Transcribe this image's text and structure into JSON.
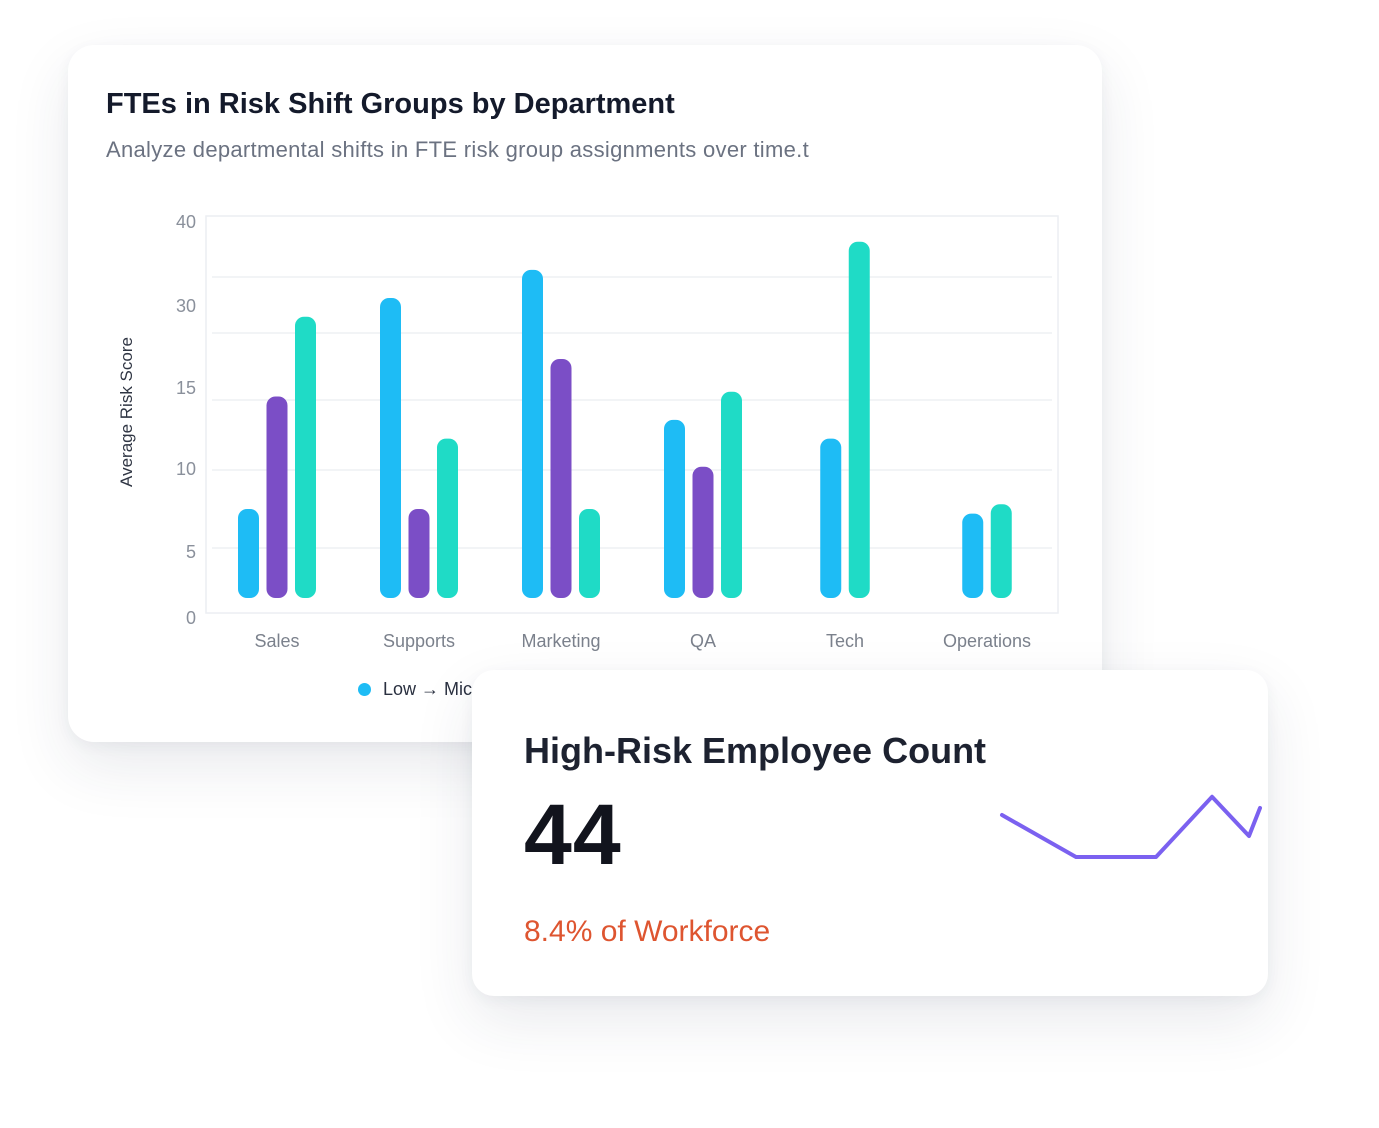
{
  "chart_card": {
    "title": "FTEs in Risk Shift Groups by Department",
    "subtitle": "Analyze departmental shifts in FTE risk group assignments over time.t"
  },
  "chart_data": {
    "type": "bar",
    "title": "FTEs in Risk Shift Groups by Department",
    "subtitle": "Analyze departmental shifts in FTE risk group assignments over time.t",
    "ylabel": "Average Risk Score",
    "xlabel": "",
    "y_ticks": [
      "0",
      "5",
      "10",
      "15",
      "30",
      "40"
    ],
    "ylim": [
      0,
      40
    ],
    "grid": true,
    "categories": [
      "Sales",
      "Supports",
      "Marketing",
      "QA",
      "Tech",
      "Operations"
    ],
    "series": [
      {
        "name": "Low → Mic",
        "color": "#1ebcf5",
        "values": [
          9.5,
          32,
          35,
          19,
          17,
          9
        ]
      },
      {
        "name": "",
        "color": "#7b4ec6",
        "values": [
          21.5,
          9.5,
          25.5,
          14,
          null,
          null
        ]
      },
      {
        "name": "",
        "color": "#1fdbc6",
        "values": [
          30,
          17,
          9.5,
          22,
          38,
          10
        ]
      }
    ],
    "legend_position": "bottom"
  },
  "legend": {
    "visible_label": "Low → Mic",
    "color": "#1ebcf5"
  },
  "stat_card": {
    "title": "High-Risk Employee Count",
    "value": "44",
    "subtext": "8.4% of Workforce",
    "subtext_color": "#de5530",
    "sparkline_color": "#7b61f0",
    "sparkline": [
      7.5,
      4.5,
      4.5,
      8.8,
      6.0,
      8.0
    ]
  }
}
